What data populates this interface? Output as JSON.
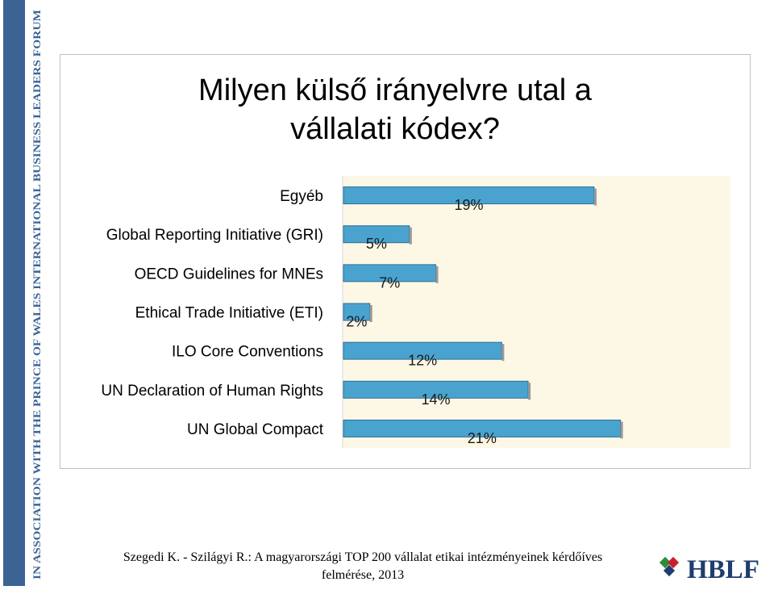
{
  "sidebar": {
    "text": "IN ASSOCIATION WITH THE PRINCE OF WALES INTERNATIONAL BUSINESS LEADERS FORUM"
  },
  "title": {
    "line1": "Milyen külső irányelvre utal a",
    "line2": "vállalati kódex?"
  },
  "footer": {
    "line1": "Szegedi K. - Szilágyi R.: A magyarországi TOP 200 vállalat etikai intézményeinek kérdőíves",
    "line2": "felmérése, 2013"
  },
  "logo": {
    "text": "HBLF",
    "colors": {
      "green": "#2e8b3c",
      "red": "#c8202f",
      "navy": "#1f3d6e"
    }
  },
  "colors": {
    "bar": "#4aa3cf",
    "bar_edge": "#2f6f95",
    "plot_bg": "#fdf8e6",
    "sidebar": "#3b6394"
  },
  "chart_data": {
    "type": "bar",
    "orientation": "horizontal",
    "categories": [
      "Egyéb",
      "Global Reporting Initiative (GRI)",
      "OECD Guidelines for MNEs",
      "Ethical Trade Initiative (ETI)",
      "ILO Core Conventions",
      "UN Declaration of Human Rights",
      "UN Global Compact"
    ],
    "values": [
      19,
      5,
      7,
      2,
      12,
      14,
      21
    ],
    "data_labels": [
      "19%",
      "5%",
      "7%",
      "2%",
      "12%",
      "14%",
      "21%"
    ],
    "xlim": [
      0,
      22
    ],
    "grid": false,
    "legend": "none"
  }
}
